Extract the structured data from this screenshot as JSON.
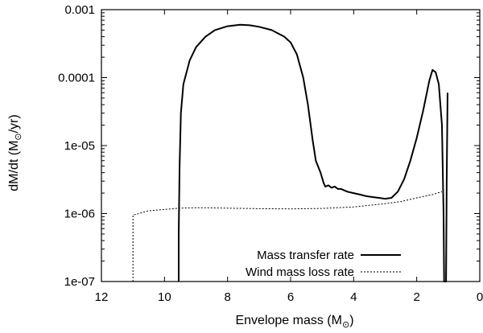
{
  "chart_data": {
    "type": "line",
    "title": "",
    "xlabel": "Envelope mass (M",
    "xlabel_sub": "⊙",
    "xlabel_end": ")",
    "ylabel": "dM/dt (M",
    "ylabel_sub": "⊙",
    "ylabel_end": "/yr)",
    "x_reversed": true,
    "xlim": [
      12,
      0
    ],
    "ylim": [
      1e-07,
      0.001
    ],
    "y_scale": "log",
    "x_ticks": [
      12,
      10,
      8,
      6,
      4,
      2,
      0
    ],
    "x_tick_labels": [
      "12",
      "10",
      "8",
      "6",
      "4",
      "2",
      "0"
    ],
    "y_ticks": [
      1e-07,
      1e-06,
      1e-05,
      0.0001,
      0.001
    ],
    "y_tick_labels": [
      "1e-07",
      "1e-06",
      "1e-05",
      "0.0001",
      "0.001"
    ],
    "legend_position": "bottom-right",
    "series": [
      {
        "name": "Mass transfer rate",
        "style": "solid",
        "color": "#000000",
        "points": [
          [
            9.55,
            1e-07
          ],
          [
            9.55,
            5e-07
          ],
          [
            9.52,
            5e-06
          ],
          [
            9.48,
            3e-05
          ],
          [
            9.4,
            8e-05
          ],
          [
            9.2,
            0.00018
          ],
          [
            9.0,
            0.00028
          ],
          [
            8.7,
            0.0004
          ],
          [
            8.4,
            0.0005
          ],
          [
            8.0,
            0.00057
          ],
          [
            7.6,
            0.0006
          ],
          [
            7.3,
            0.00059
          ],
          [
            7.0,
            0.00056
          ],
          [
            6.6,
            0.0005
          ],
          [
            6.2,
            0.0004
          ],
          [
            6.0,
            0.00033
          ],
          [
            5.8,
            0.00022
          ],
          [
            5.6,
            0.0001
          ],
          [
            5.45,
            4e-05
          ],
          [
            5.3,
            1.2e-05
          ],
          [
            5.2,
            6e-06
          ],
          [
            5.05,
            4e-06
          ],
          [
            4.95,
            2.8e-06
          ],
          [
            4.9,
            2.5e-06
          ],
          [
            4.8,
            2.6e-06
          ],
          [
            4.7,
            2.4e-06
          ],
          [
            4.6,
            2.5e-06
          ],
          [
            4.5,
            2.3e-06
          ],
          [
            4.4,
            2.3e-06
          ],
          [
            4.2,
            2.1e-06
          ],
          [
            4.0,
            2e-06
          ],
          [
            3.8,
            1.9e-06
          ],
          [
            3.6,
            1.8e-06
          ],
          [
            3.4,
            1.75e-06
          ],
          [
            3.2,
            1.7e-06
          ],
          [
            3.0,
            1.65e-06
          ],
          [
            2.8,
            1.7e-06
          ],
          [
            2.6,
            2.1e-06
          ],
          [
            2.4,
            3.2e-06
          ],
          [
            2.2,
            6e-06
          ],
          [
            2.0,
            1.3e-05
          ],
          [
            1.8,
            3.2e-05
          ],
          [
            1.6,
            9e-05
          ],
          [
            1.5,
            0.00013
          ],
          [
            1.4,
            0.00012
          ],
          [
            1.3,
            8e-05
          ],
          [
            1.2,
            2e-05
          ],
          [
            1.15,
            1e-06
          ],
          [
            1.13,
            1e-07
          ],
          [
            1.07,
            1e-07
          ],
          [
            1.05,
            3e-06
          ],
          [
            1.02,
            6e-05
          ]
        ]
      },
      {
        "name": "Wind mass loss rate",
        "style": "dotted",
        "color": "#000000",
        "points": [
          [
            11.0,
            1e-07
          ],
          [
            11.0,
            5e-07
          ],
          [
            11.0,
            9.5e-07
          ],
          [
            10.5,
            1.1e-06
          ],
          [
            10.0,
            1.15e-06
          ],
          [
            9.5,
            1.2e-06
          ],
          [
            9.0,
            1.22e-06
          ],
          [
            8.0,
            1.2e-06
          ],
          [
            7.0,
            1.18e-06
          ],
          [
            6.0,
            1.17e-06
          ],
          [
            5.0,
            1.19e-06
          ],
          [
            4.0,
            1.25e-06
          ],
          [
            3.0,
            1.4e-06
          ],
          [
            2.5,
            1.5e-06
          ],
          [
            2.0,
            1.7e-06
          ],
          [
            1.5,
            1.9e-06
          ],
          [
            1.2,
            2.1e-06
          ]
        ]
      }
    ]
  }
}
